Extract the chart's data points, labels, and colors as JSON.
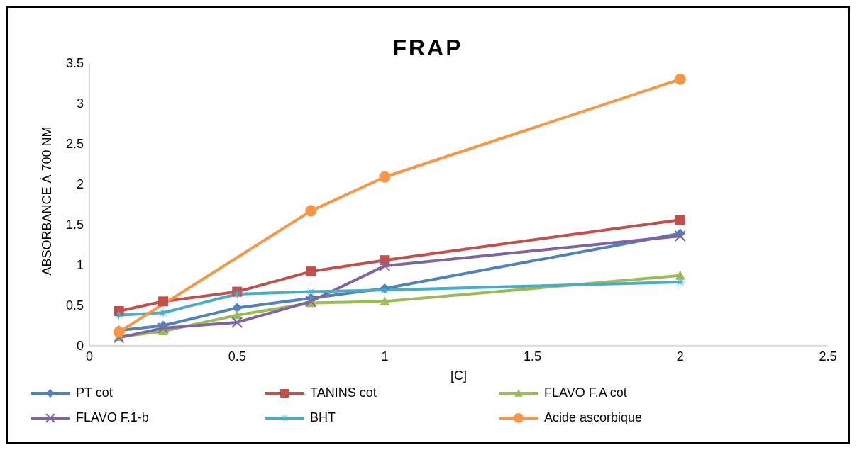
{
  "chart_data": {
    "type": "line",
    "title": "FRAP",
    "xlabel": "[C]",
    "ylabel": "ABSORBANCE À 700 NM",
    "xlim": [
      0,
      2.5
    ],
    "xticks": [
      0,
      0.5,
      1,
      1.5,
      2,
      2.5
    ],
    "ylim": [
      0,
      3.5
    ],
    "yticks": [
      0,
      0.5,
      1,
      1.5,
      2,
      2.5,
      3,
      3.5
    ],
    "grid": false,
    "legend": "bottom",
    "line_style": "solid",
    "x": [
      0.1,
      0.25,
      0.5,
      0.75,
      1,
      2
    ],
    "series": [
      {
        "name": "PT cot",
        "color": "#4f81bd",
        "marker": "diamond",
        "values": [
          0.19,
          0.25,
          0.47,
          0.59,
          0.71,
          1.39
        ]
      },
      {
        "name": "TANINS cot",
        "color": "#c0504d",
        "marker": "square",
        "values": [
          0.43,
          0.55,
          0.67,
          0.92,
          1.06,
          1.56
        ]
      },
      {
        "name": "FLAVO F.A cot",
        "color": "#9bbb59",
        "marker": "triangle",
        "values": [
          0.11,
          0.18,
          0.38,
          0.53,
          0.55,
          0.87
        ]
      },
      {
        "name": "FLAVO F.1-b",
        "color": "#8064a2",
        "marker": "cross",
        "values": [
          0.1,
          0.22,
          0.29,
          0.55,
          0.99,
          1.36
        ]
      },
      {
        "name": "BHT",
        "color": "#4bacc6",
        "marker": "star",
        "values": [
          0.38,
          0.41,
          0.64,
          0.67,
          0.69,
          0.79
        ]
      },
      {
        "name": "Acide ascorbique",
        "color": "#f79646",
        "marker": "circle",
        "x": [
          0.1,
          0.75,
          1,
          2
        ],
        "values": [
          0.17,
          1.67,
          2.09,
          3.3
        ]
      }
    ]
  }
}
